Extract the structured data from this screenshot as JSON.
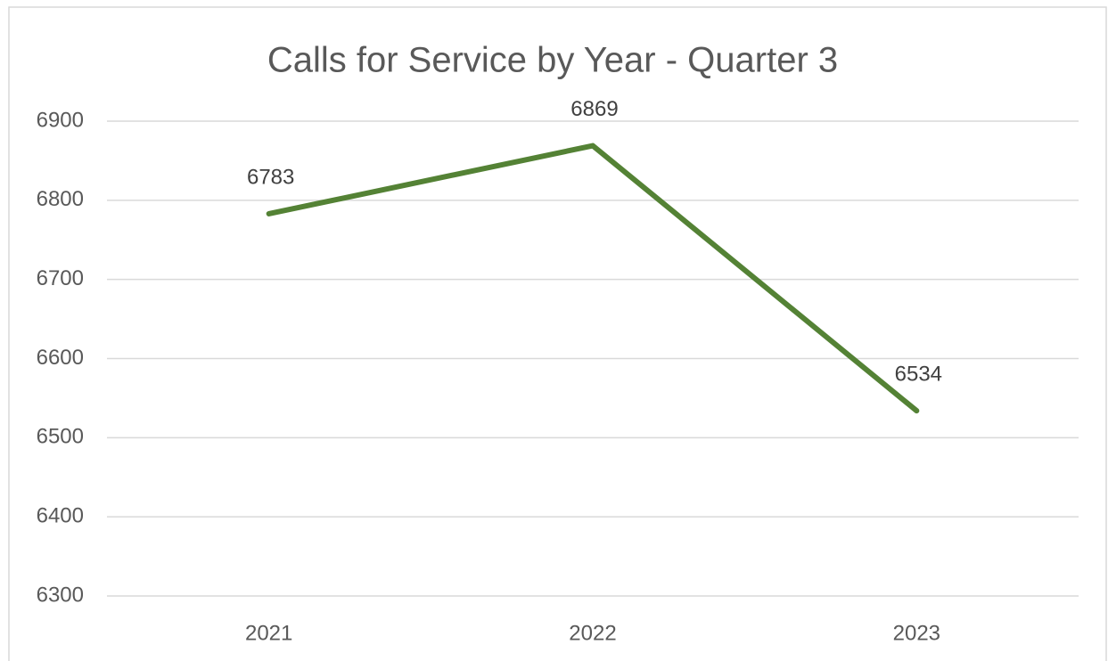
{
  "chart_data": {
    "type": "line",
    "title": "Calls for Service by Year - Quarter 3",
    "categories": [
      "2021",
      "2022",
      "2023"
    ],
    "values": [
      6783,
      6869,
      6534
    ],
    "color": "#548235",
    "ylim": [
      6300,
      6900
    ],
    "yticks": [
      6300,
      6400,
      6500,
      6600,
      6700,
      6800,
      6900
    ],
    "grid": true
  }
}
